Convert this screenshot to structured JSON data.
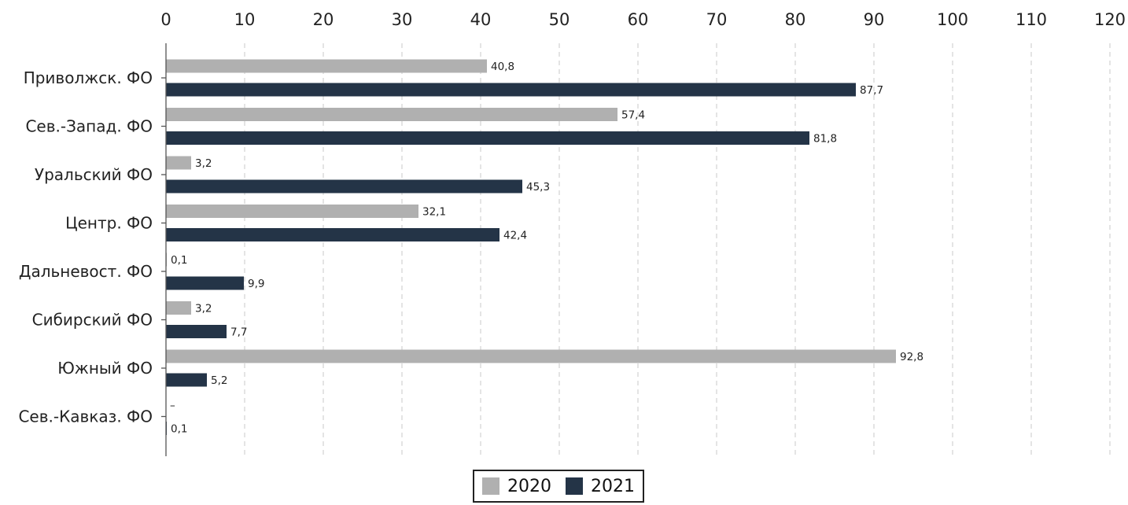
{
  "chart_data": {
    "type": "bar",
    "orientation": "horizontal",
    "categories": [
      "Приволжск. ФО",
      "Сев.-Запад. ФО",
      "Уральский ФО",
      "Центр. ФО",
      "Дальневост. ФО",
      "Сибирский ФО",
      "Южный ФО",
      "Сев.-Кавказ. ФО"
    ],
    "series": [
      {
        "name": "2020",
        "color": "#b0b0b0",
        "values": [
          40.8,
          57.4,
          3.2,
          32.1,
          0.1,
          3.2,
          92.8,
          null
        ],
        "labels": [
          "40,8",
          "57,4",
          "3,2",
          "32,1",
          "0,1",
          "3,2",
          "92,8",
          "–"
        ]
      },
      {
        "name": "2021",
        "color": "#243447",
        "values": [
          87.7,
          81.8,
          45.3,
          42.4,
          9.9,
          7.7,
          5.2,
          0.1
        ],
        "labels": [
          "87,7",
          "81,8",
          "45,3",
          "42,4",
          "9,9",
          "7,7",
          "5,2",
          "0,1"
        ]
      }
    ],
    "xlim": [
      0,
      120
    ],
    "xticks": [
      "0",
      "10",
      "20",
      "30",
      "40",
      "50",
      "60",
      "70",
      "80",
      "90",
      "100",
      "110",
      "120"
    ],
    "xaxis_position": "top",
    "grid": "vertical-dashed",
    "legend": "bottom-center"
  }
}
